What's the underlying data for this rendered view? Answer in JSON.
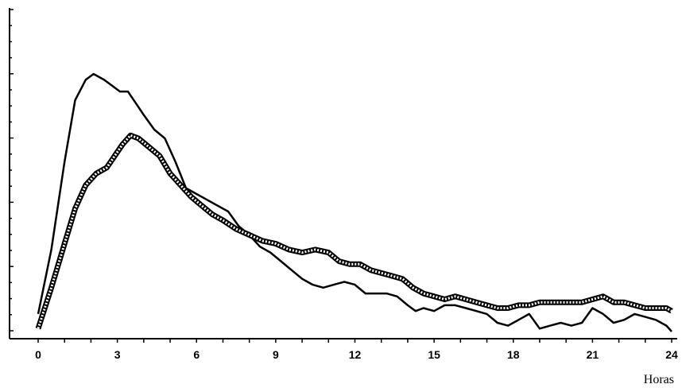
{
  "chart_data": {
    "type": "line",
    "title": "",
    "xlabel": "Horas",
    "ylabel": "",
    "xlim": [
      0,
      24
    ],
    "ylim": [
      0,
      11
    ],
    "x_ticks": [
      0,
      3,
      6,
      9,
      12,
      15,
      18,
      21,
      24
    ],
    "x_tick_labels": [
      "0",
      "3",
      "6",
      "9",
      "12",
      "15",
      "18",
      "21",
      "24"
    ],
    "grid": false,
    "legend": "none",
    "series": [
      {
        "style": "solid",
        "color": "#000000",
        "x": [
          0,
          0.5,
          1,
          1.4,
          1.8,
          2.1,
          2.5,
          2.8,
          3.1,
          3.4,
          3.7,
          4.0,
          4.4,
          4.8,
          5.2,
          5.6,
          6.0,
          6.4,
          6.8,
          7.2,
          7.6,
          8.0,
          8.4,
          8.8,
          9.2,
          9.6,
          10.0,
          10.4,
          10.8,
          11.2,
          11.6,
          12.0,
          12.4,
          12.8,
          13.2,
          13.6,
          14.0,
          14.3,
          14.6,
          15.0,
          15.4,
          15.8,
          16.2,
          16.6,
          17.0,
          17.4,
          17.8,
          18.2,
          18.6,
          19.0,
          19.4,
          19.8,
          20.2,
          20.6,
          21.0,
          21.4,
          21.8,
          22.2,
          22.6,
          23.0,
          23.4,
          23.8,
          24.0
        ],
        "y": [
          0.6,
          2.8,
          5.8,
          7.9,
          8.6,
          8.8,
          8.6,
          8.4,
          8.2,
          8.2,
          7.8,
          7.4,
          6.9,
          6.6,
          5.8,
          4.9,
          4.7,
          4.5,
          4.3,
          4.1,
          3.6,
          3.3,
          2.9,
          2.7,
          2.4,
          2.1,
          1.8,
          1.6,
          1.5,
          1.6,
          1.7,
          1.6,
          1.3,
          1.3,
          1.3,
          1.2,
          0.9,
          0.7,
          0.8,
          0.7,
          0.9,
          0.9,
          0.8,
          0.7,
          0.6,
          0.3,
          0.2,
          0.4,
          0.6,
          0.1,
          0.2,
          0.3,
          0.2,
          0.3,
          0.8,
          0.6,
          0.3,
          0.4,
          0.6,
          0.5,
          0.4,
          0.2,
          0.0
        ]
      },
      {
        "style": "dashed",
        "color": "#000000",
        "x": [
          0,
          0.5,
          1,
          1.4,
          1.8,
          2.2,
          2.6,
          2.9,
          3.2,
          3.5,
          3.8,
          4.2,
          4.6,
          5.0,
          5.4,
          5.8,
          6.2,
          6.6,
          7.0,
          7.5,
          8.0,
          8.5,
          9.0,
          9.5,
          10.0,
          10.5,
          11.0,
          11.4,
          11.8,
          12.2,
          12.6,
          13.0,
          13.4,
          13.8,
          14.2,
          14.6,
          15.0,
          15.4,
          15.8,
          16.2,
          16.6,
          17.0,
          17.4,
          17.8,
          18.2,
          18.6,
          19.0,
          19.4,
          19.8,
          20.2,
          20.6,
          21.0,
          21.4,
          21.8,
          22.2,
          22.6,
          23.0,
          23.4,
          23.8,
          24.0
        ],
        "y": [
          0.1,
          1.5,
          3.0,
          4.2,
          5.0,
          5.4,
          5.6,
          6.0,
          6.4,
          6.7,
          6.6,
          6.3,
          6.0,
          5.4,
          5.0,
          4.6,
          4.3,
          4.0,
          3.8,
          3.5,
          3.3,
          3.1,
          3.0,
          2.8,
          2.7,
          2.8,
          2.7,
          2.4,
          2.3,
          2.3,
          2.1,
          2.0,
          1.9,
          1.8,
          1.5,
          1.3,
          1.2,
          1.1,
          1.2,
          1.1,
          1.0,
          0.9,
          0.8,
          0.8,
          0.9,
          0.9,
          1.0,
          1.0,
          1.0,
          1.0,
          1.0,
          1.1,
          1.2,
          1.0,
          1.0,
          0.9,
          0.8,
          0.8,
          0.8,
          0.7
        ]
      }
    ]
  }
}
